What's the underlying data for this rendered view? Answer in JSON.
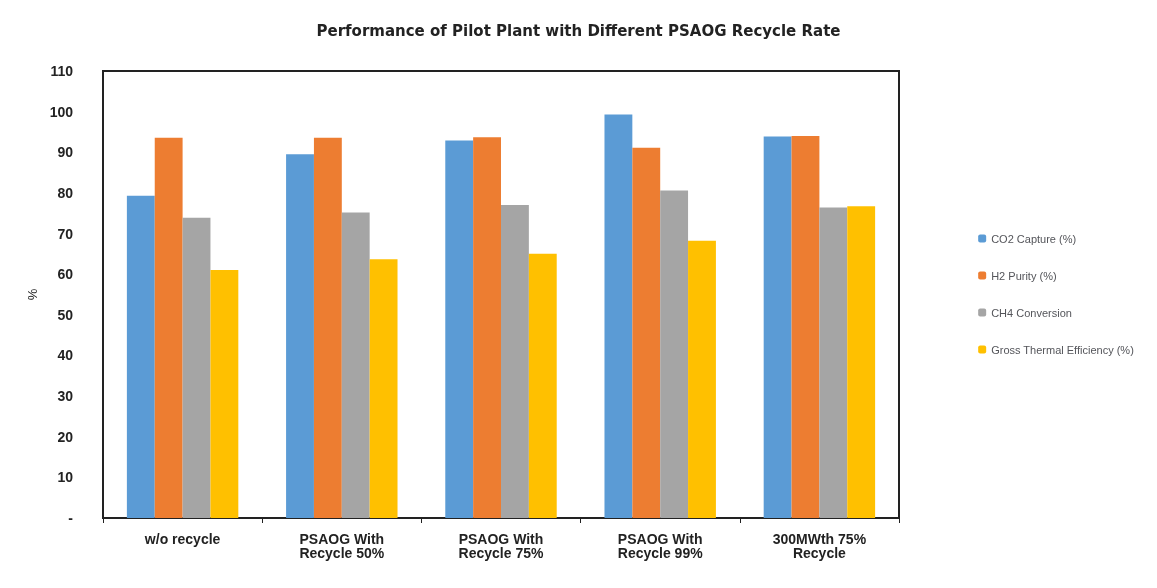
{
  "chart_data": {
    "type": "bar",
    "title": "Performance of Pilot Plant with Different PSAOG Recycle Rate",
    "ylabel": "%",
    "categories": [
      "w/o recycle",
      "PSAOG With\nRecycle 50%",
      "PSAOG With\nRecycle 75%",
      "PSAOG With\nRecycle 99%",
      "300MWth 75%\nRecycle"
    ],
    "series": [
      {
        "name": "CO2 Capture (%)",
        "color": "#5b9bd5",
        "values": [
          79.3,
          89.5,
          92.9,
          99.3,
          93.9
        ]
      },
      {
        "name": "H2 Purity (%)",
        "color": "#ed7d31",
        "values": [
          93.6,
          93.6,
          93.7,
          91.1,
          94.0
        ]
      },
      {
        "name": "CH4 Conversion",
        "color": "#a5a5a5",
        "values": [
          73.9,
          75.2,
          77.0,
          80.6,
          76.4
        ]
      },
      {
        "name": "Gross Thermal Efficiency (%)",
        "color": "#ffc000",
        "values": [
          61.0,
          63.7,
          65.0,
          68.2,
          76.7
        ]
      }
    ],
    "ylim": [
      0,
      110
    ],
    "yticks": [
      {
        "value": 0,
        "label": "-"
      },
      10,
      20,
      30,
      40,
      50,
      60,
      70,
      80,
      90,
      100,
      110
    ],
    "grid": false,
    "legend": "right"
  }
}
